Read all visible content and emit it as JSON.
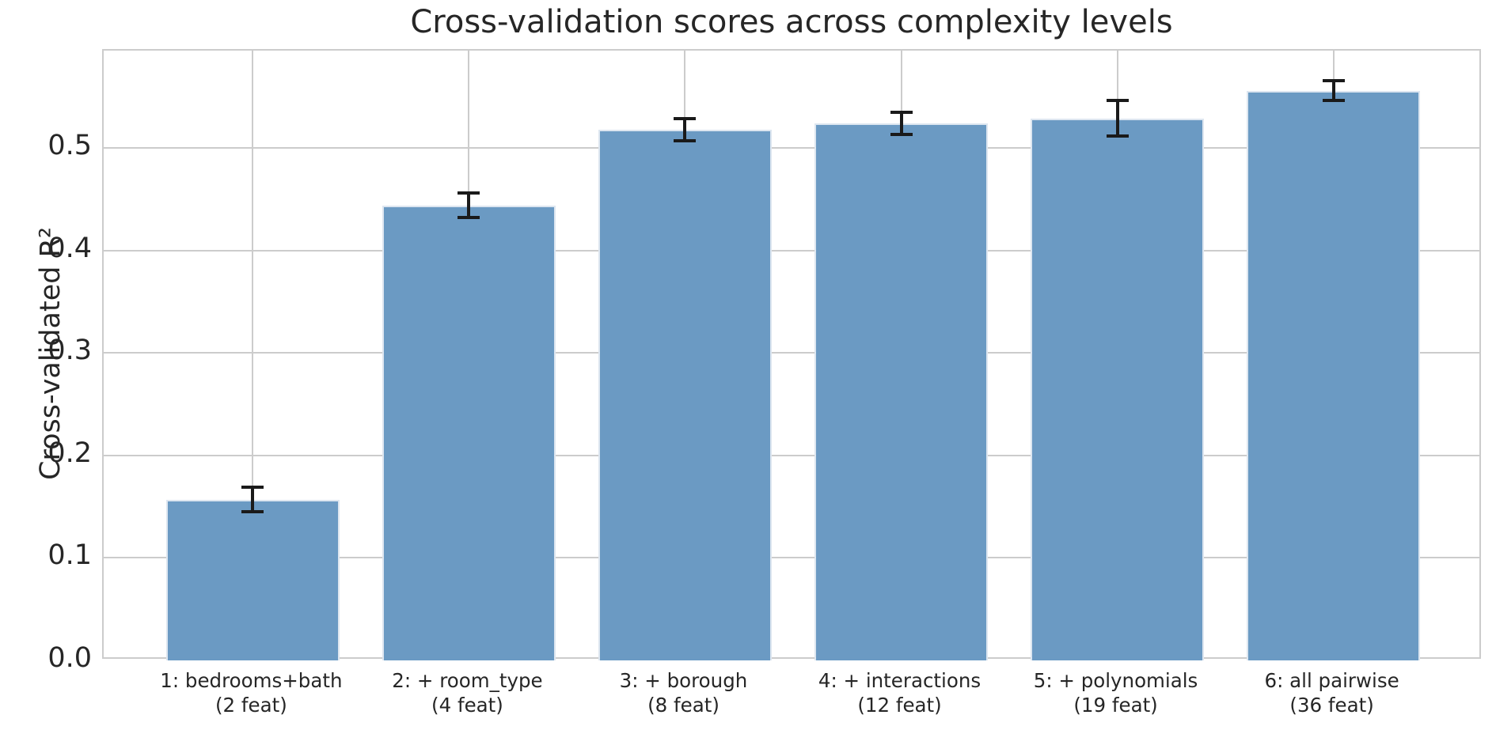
{
  "figure": {
    "title": "Cross-validation scores across complexity levels"
  },
  "chart_data": {
    "type": "bar",
    "title": "Cross-validation scores across complexity levels",
    "xlabel": "",
    "ylabel": "Cross-validated R²",
    "categories": [
      {
        "label": "1: bedrooms+bath",
        "sublabel": "(2 feat)"
      },
      {
        "label": "2: + room_type",
        "sublabel": "(4 feat)"
      },
      {
        "label": "3: + borough",
        "sublabel": "(8 feat)"
      },
      {
        "label": "4: + interactions",
        "sublabel": "(12 feat)"
      },
      {
        "label": "5: + polynomials",
        "sublabel": "(19 feat)"
      },
      {
        "label": "6: all pairwise",
        "sublabel": "(36 feat)"
      }
    ],
    "values": [
      0.157,
      0.444,
      0.518,
      0.524,
      0.529,
      0.556
    ],
    "errors": [
      0.012,
      0.012,
      0.011,
      0.011,
      0.017,
      0.01
    ],
    "yticks": [
      0.0,
      0.1,
      0.2,
      0.3,
      0.4,
      0.5
    ],
    "ytick_labels": [
      "0.0",
      "0.1",
      "0.2",
      "0.3",
      "0.4",
      "0.5"
    ],
    "ylim": [
      0,
      0.595
    ],
    "bar_width_fraction": 0.8,
    "x_edge_margin": 0.69,
    "grid": true,
    "legend": false
  },
  "colors": {
    "background": "#ffffff",
    "bar_fill": "#6b9ac3",
    "bar_edge": "#dde6f0",
    "error_bar": "#1a1a1a",
    "grid": "#cccccc",
    "spine": "#cccccc",
    "text": "#262626"
  }
}
